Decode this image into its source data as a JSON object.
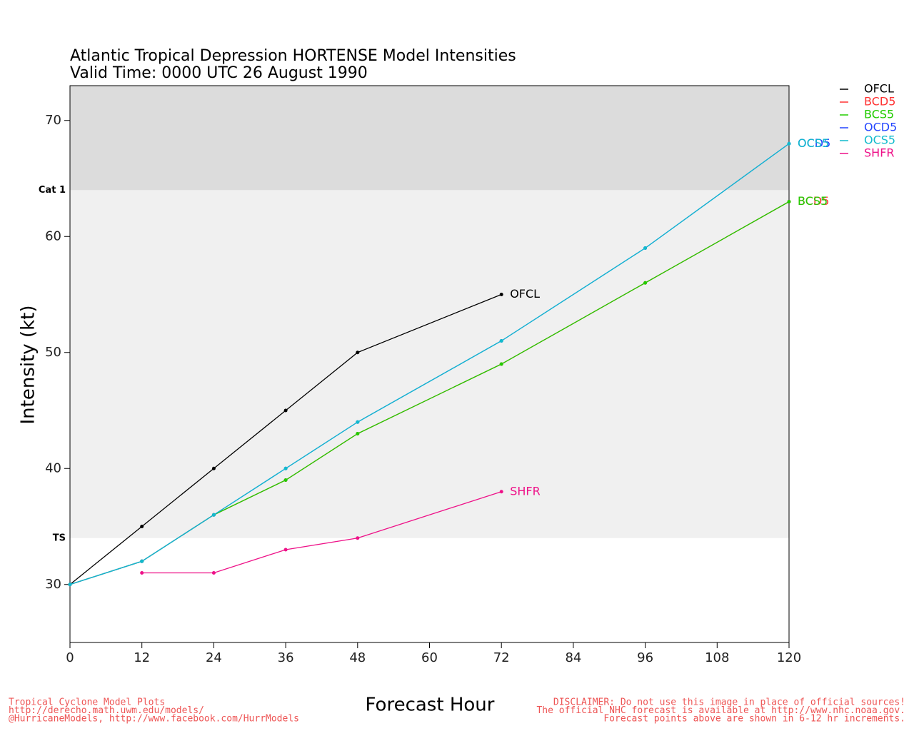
{
  "chart_data": {
    "type": "line",
    "title": "Atlantic Tropical Depression HORTENSE Model Intensities",
    "subtitle": "Valid Time: 0000 UTC 26 August 1990",
    "x_label": "Forecast Hour",
    "y_label": "Intensity (kt)",
    "x": [
      0,
      12,
      24,
      36,
      48,
      72,
      96,
      120
    ],
    "series": [
      {
        "name": "OFCL",
        "color": "#000000",
        "values": [
          30,
          35,
          40,
          45,
          50,
          55,
          null,
          null
        ]
      },
      {
        "name": "BCD5",
        "color": "#ff3333",
        "values": [
          30,
          32,
          36,
          39,
          43,
          49,
          56,
          63
        ]
      },
      {
        "name": "BCS5",
        "color": "#22cc00",
        "values": [
          30,
          32,
          36,
          39,
          43,
          49,
          56,
          63
        ]
      },
      {
        "name": "OCD5",
        "color": "#2244ff",
        "values": [
          30,
          32,
          36,
          40,
          44,
          51,
          59,
          68
        ]
      },
      {
        "name": "OCS5",
        "color": "#11bbcc",
        "values": [
          30,
          32,
          36,
          40,
          44,
          51,
          59,
          68
        ]
      },
      {
        "name": "SHFR",
        "color": "#ee1188",
        "values": [
          null,
          31,
          31,
          33,
          34,
          38,
          null,
          null
        ]
      }
    ],
    "xlim": [
      0,
      120
    ],
    "ylim": [
      25,
      73
    ],
    "xticks": [
      0,
      12,
      24,
      36,
      48,
      60,
      72,
      84,
      96,
      108,
      120
    ],
    "yticks": [
      30,
      40,
      50,
      60,
      70
    ],
    "thresholds": [
      {
        "value": 34,
        "label": "TS"
      },
      {
        "value": 64,
        "label": "Cat 1"
      }
    ]
  },
  "footer": {
    "left": [
      "Tropical Cyclone Model Plots",
      "http://derecho.math.uwm.edu/models/",
      "@HurricaneModels, http://www.facebook.com/HurrModels"
    ],
    "right": [
      "DISCLAIMER: Do not use this image in place of official sources!",
      "The official NHC forecast is available at http://www.nhc.noaa.gov.",
      "Forecast points above are shown in 6-12 hr increments."
    ]
  }
}
